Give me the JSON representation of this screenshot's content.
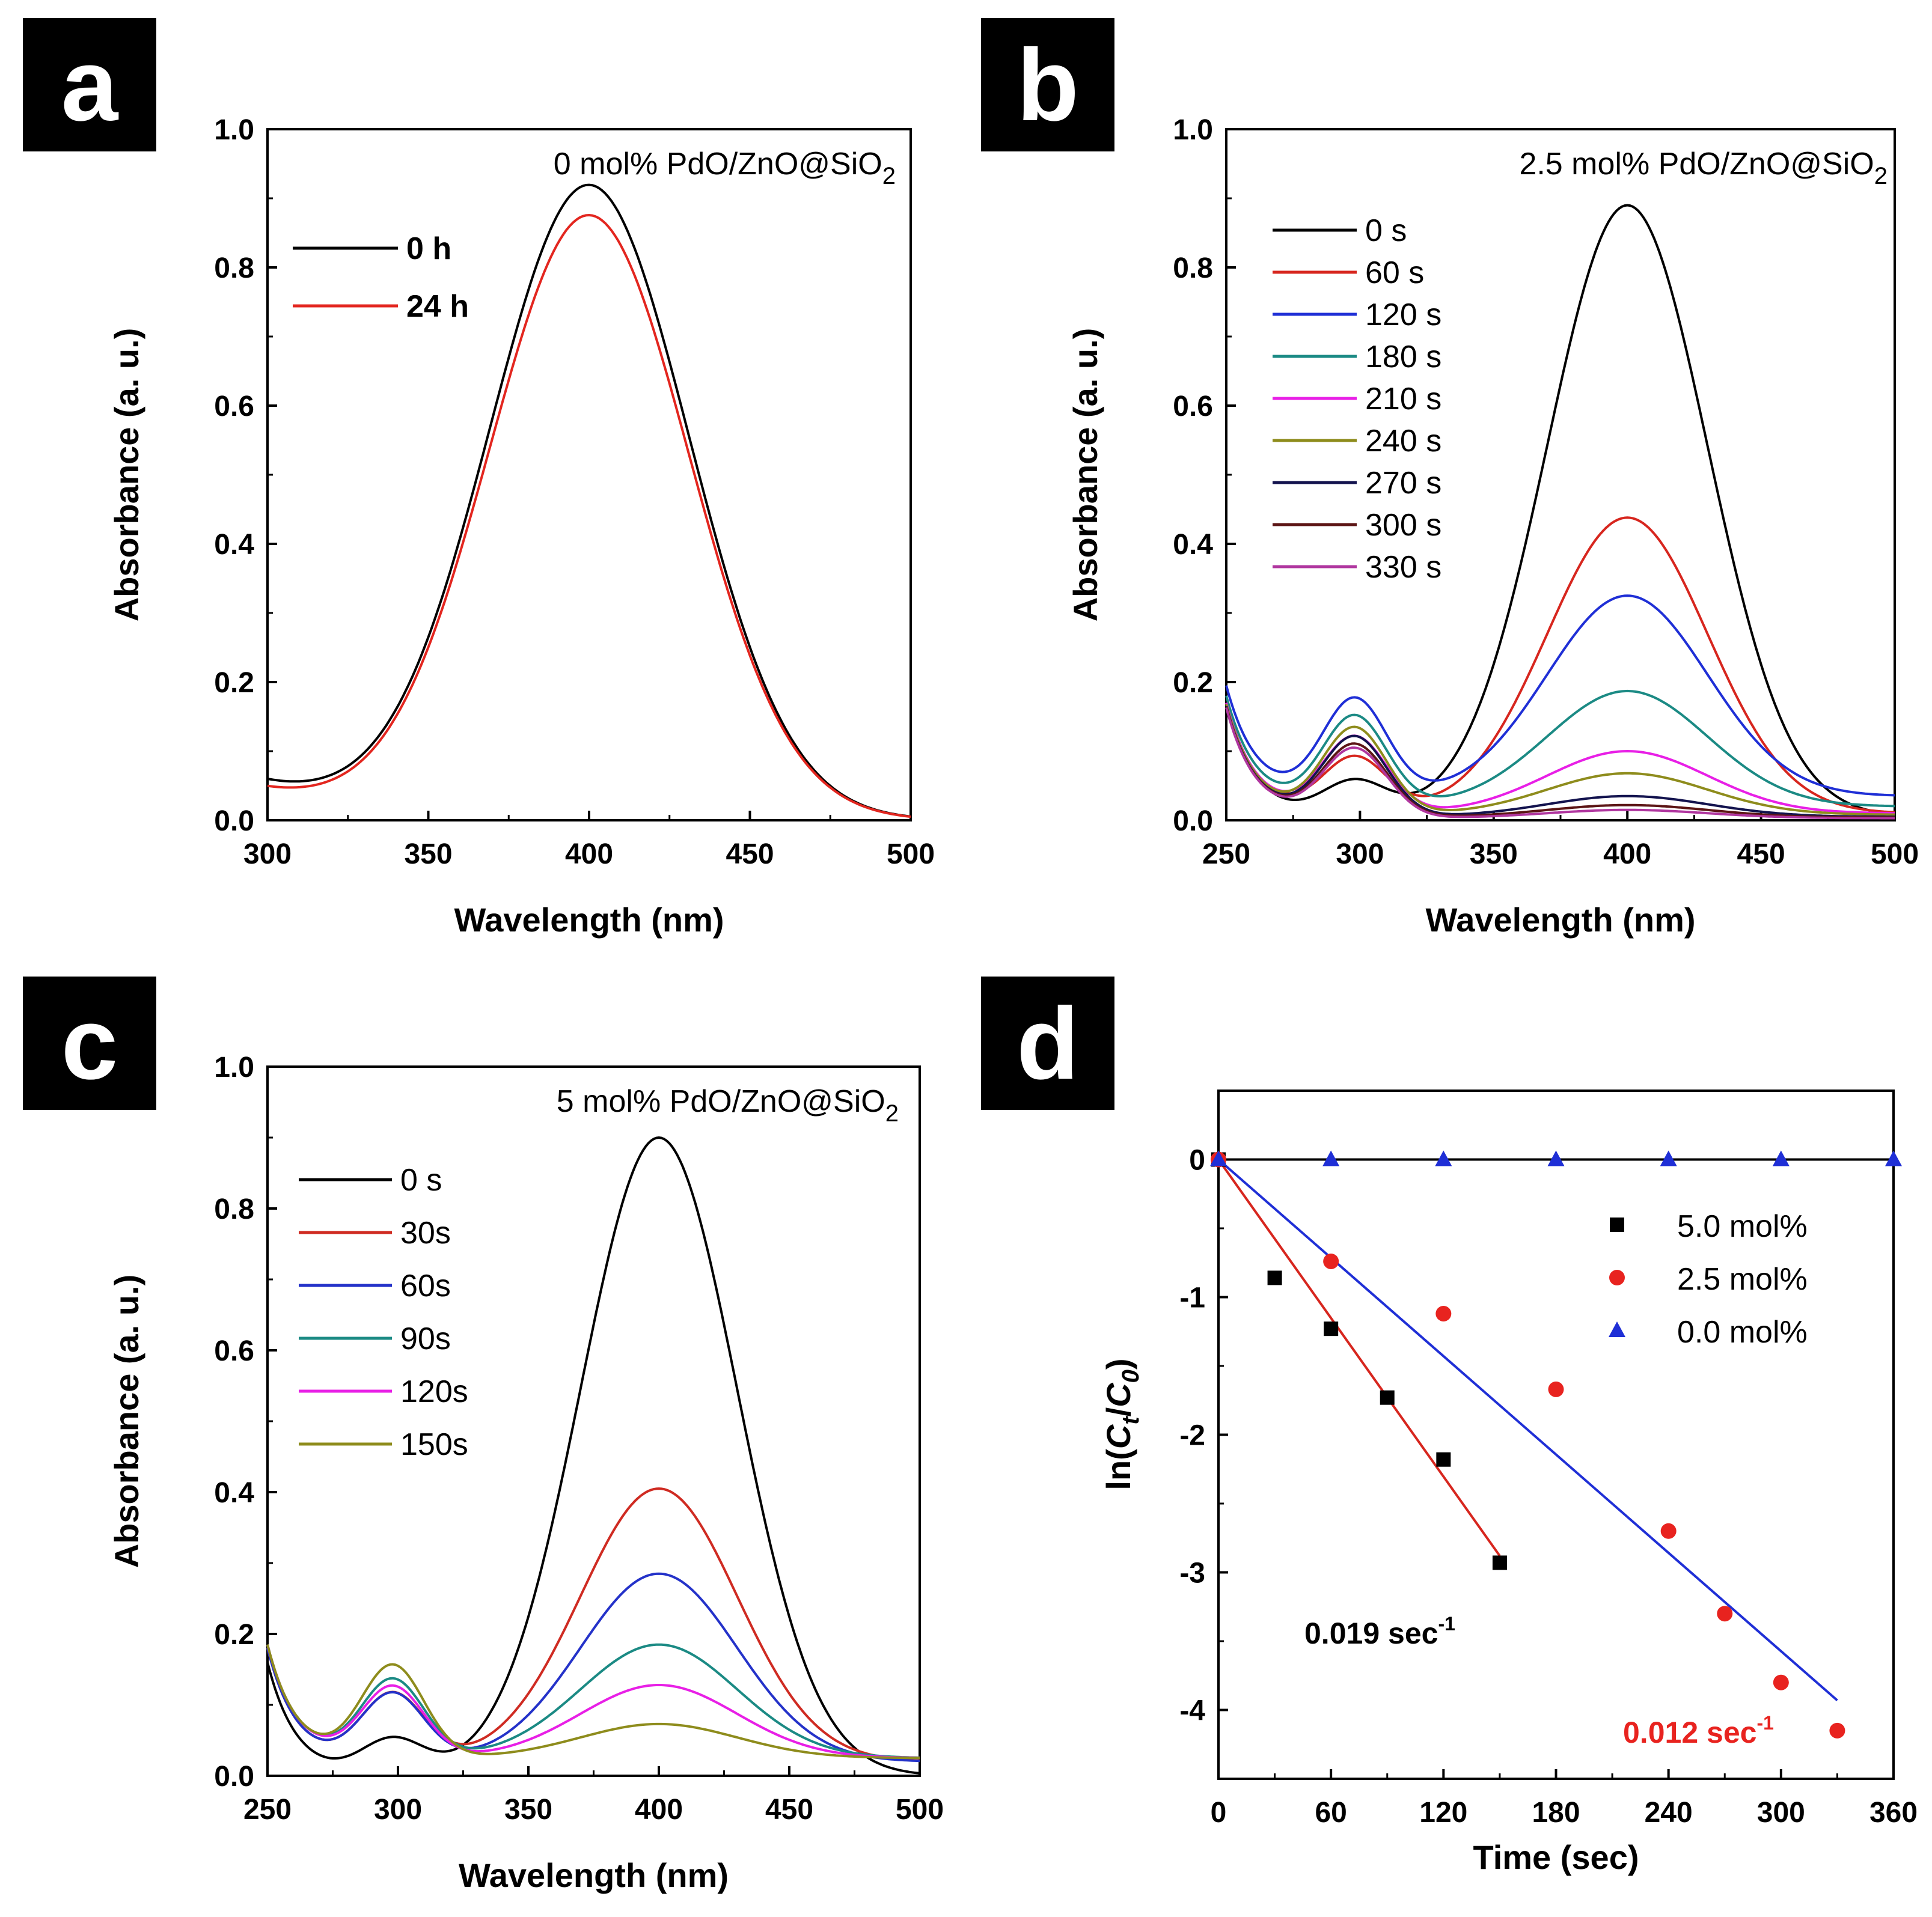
{
  "chart_data": [
    {
      "panel": "a",
      "type": "line",
      "annotation": "0 mol% PdO/ZnO@SiO",
      "annotation_sub": "2",
      "xlabel": "Wavelength (nm)",
      "ylabel": "Absorbance (a. u.)",
      "xlim": [
        300,
        500
      ],
      "ylim": [
        0,
        1.0
      ],
      "xticks": [
        "300",
        "350",
        "400",
        "450",
        "500"
      ],
      "yticks": [
        "0.0",
        "0.2",
        "0.4",
        "0.6",
        "0.8",
        "1.0"
      ],
      "legend_position": "top-left",
      "series": [
        {
          "name": "0 h",
          "color": "#000000",
          "peak_wavelength": 400,
          "peak_absorbance": 0.915,
          "baseline": 0.0,
          "start_absorbance": 0.055
        },
        {
          "name": "24 h",
          "color": "#e3261f",
          "peak_wavelength": 400,
          "peak_absorbance": 0.872,
          "baseline": 0.0,
          "start_absorbance": 0.045
        }
      ]
    },
    {
      "panel": "b",
      "type": "line",
      "annotation": "2.5 mol% PdO/ZnO@SiO",
      "annotation_sub": "2",
      "xlabel": "Wavelength (nm)",
      "ylabel": "Absorbance (a. u.)",
      "xlim": [
        250,
        500
      ],
      "ylim": [
        0,
        1.0
      ],
      "xticks": [
        "250",
        "300",
        "350",
        "400",
        "450",
        "500"
      ],
      "yticks": [
        "0.0",
        "0.2",
        "0.4",
        "0.6",
        "0.8",
        "1.0"
      ],
      "legend_position": "top-left",
      "series": [
        {
          "name": "0 s",
          "color": "#000000",
          "peak_wavelength": 400,
          "peak_absorbance": 0.885,
          "peak300": 0.05,
          "baseline": 0.005
        },
        {
          "name": "60 s",
          "color": "#d7261e",
          "peak_wavelength": 400,
          "peak_absorbance": 0.428,
          "peak300": 0.08,
          "baseline": 0.01
        },
        {
          "name": "120 s",
          "color": "#1f2fd6",
          "peak_wavelength": 400,
          "peak_absorbance": 0.29,
          "peak300": 0.14,
          "baseline": 0.035
        },
        {
          "name": "180 s",
          "color": "#1b8a84",
          "peak_wavelength": 400,
          "peak_absorbance": 0.167,
          "peak300": 0.13,
          "baseline": 0.02
        },
        {
          "name": "210 s",
          "color": "#e81fe6",
          "peak_wavelength": 400,
          "peak_absorbance": 0.09,
          "peak300": 0.11,
          "baseline": 0.01
        },
        {
          "name": "240 s",
          "color": "#8e8c1c",
          "peak_wavelength": 400,
          "peak_absorbance": 0.06,
          "peak300": 0.125,
          "baseline": 0.008
        },
        {
          "name": "270 s",
          "color": "#13134e",
          "peak_wavelength": 400,
          "peak_absorbance": 0.03,
          "peak300": 0.115,
          "baseline": 0.005
        },
        {
          "name": "300 s",
          "color": "#5c1515",
          "peak_wavelength": 400,
          "peak_absorbance": 0.018,
          "peak300": 0.105,
          "baseline": 0.004
        },
        {
          "name": "330 s",
          "color": "#b0369f",
          "peak_wavelength": 400,
          "peak_absorbance": 0.012,
          "peak300": 0.1,
          "baseline": 0.003
        }
      ]
    },
    {
      "panel": "c",
      "type": "line",
      "annotation": "5 mol% PdO/ZnO@SiO",
      "annotation_sub": "2",
      "xlabel": "Wavelength (nm)",
      "ylabel": "Absorbance (a. u.)",
      "xlim": [
        250,
        500
      ],
      "ylim": [
        0,
        1.0
      ],
      "xticks": [
        "250",
        "300",
        "350",
        "400",
        "450",
        "500"
      ],
      "yticks": [
        "0.0",
        "0.2",
        "0.4",
        "0.6",
        "0.8",
        "1.0"
      ],
      "legend_position": "top-left",
      "series": [
        {
          "name": "0 s",
          "color": "#000000",
          "peak_wavelength": 400,
          "peak_absorbance": 0.9,
          "peak300": 0.05,
          "baseline": 0.0
        },
        {
          "name": "30s",
          "color": "#cf2b22",
          "peak_wavelength": 400,
          "peak_absorbance": 0.385,
          "peak300": 0.095,
          "baseline": 0.02
        },
        {
          "name": "60s",
          "color": "#2432c9",
          "peak_wavelength": 400,
          "peak_absorbance": 0.265,
          "peak300": 0.095,
          "baseline": 0.02
        },
        {
          "name": "90s",
          "color": "#1b8a84",
          "peak_wavelength": 400,
          "peak_absorbance": 0.16,
          "peak300": 0.11,
          "baseline": 0.025
        },
        {
          "name": "120s",
          "color": "#e81fe6",
          "peak_wavelength": 400,
          "peak_absorbance": 0.103,
          "peak300": 0.1,
          "baseline": 0.025
        },
        {
          "name": "150s",
          "color": "#8e8c1c",
          "peak_wavelength": 400,
          "peak_absorbance": 0.048,
          "peak300": 0.13,
          "baseline": 0.025
        }
      ]
    },
    {
      "panel": "d",
      "type": "scatter",
      "xlabel": "Time (sec)",
      "ylabel_prefix": "ln(",
      "ylabel_ct": "C",
      "ylabel_t": "t",
      "ylabel_slash": "/",
      "ylabel_c0": "C",
      "ylabel_0": "0",
      "ylabel_suffix": ")",
      "xlim": [
        0,
        360
      ],
      "ylim": [
        -4.5,
        0.5
      ],
      "xticks": [
        "0",
        "60",
        "120",
        "180",
        "240",
        "300",
        "360"
      ],
      "yticks": [
        "0",
        "-1",
        "-2",
        "-3",
        "-4"
      ],
      "legend_position": "top-right",
      "series": [
        {
          "name": "5.0 mol%",
          "marker": "square",
          "color": "#000000",
          "x": [
            0,
            30,
            60,
            90,
            120,
            150
          ],
          "y": [
            0,
            -0.86,
            -1.23,
            -1.73,
            -2.18,
            -2.93
          ],
          "fit": {
            "color": "#d7261e",
            "x": [
              0,
              150
            ],
            "y": [
              0,
              -2.88
            ]
          }
        },
        {
          "name": "2.5 mol%",
          "marker": "circle",
          "color": "#e8231f",
          "x": [
            0,
            60,
            120,
            180,
            240,
            270,
            300,
            330
          ],
          "y": [
            0,
            -0.74,
            -1.12,
            -1.67,
            -2.7,
            -3.3,
            -3.8,
            -4.15
          ],
          "fit": {
            "color": "#1f2fd6",
            "x": [
              0,
              330
            ],
            "y": [
              0,
              -3.93
            ]
          }
        },
        {
          "name": "0.0 mol%",
          "marker": "triangle",
          "color": "#1f2fd6",
          "x": [
            0,
            60,
            120,
            180,
            240,
            300,
            360
          ],
          "y": [
            0,
            0,
            0,
            0,
            0,
            0,
            0
          ],
          "fit": {
            "color": "#000000",
            "x": [
              0,
              360
            ],
            "y": [
              0,
              0
            ]
          }
        }
      ],
      "rate_labels": [
        {
          "text": "0.019 sec",
          "sup": "-1",
          "color": "#000000"
        },
        {
          "text": "0.012 sec",
          "sup": "-1",
          "color": "#e8231f"
        }
      ]
    }
  ],
  "panel_letters": [
    "a",
    "b",
    "c",
    "d"
  ]
}
